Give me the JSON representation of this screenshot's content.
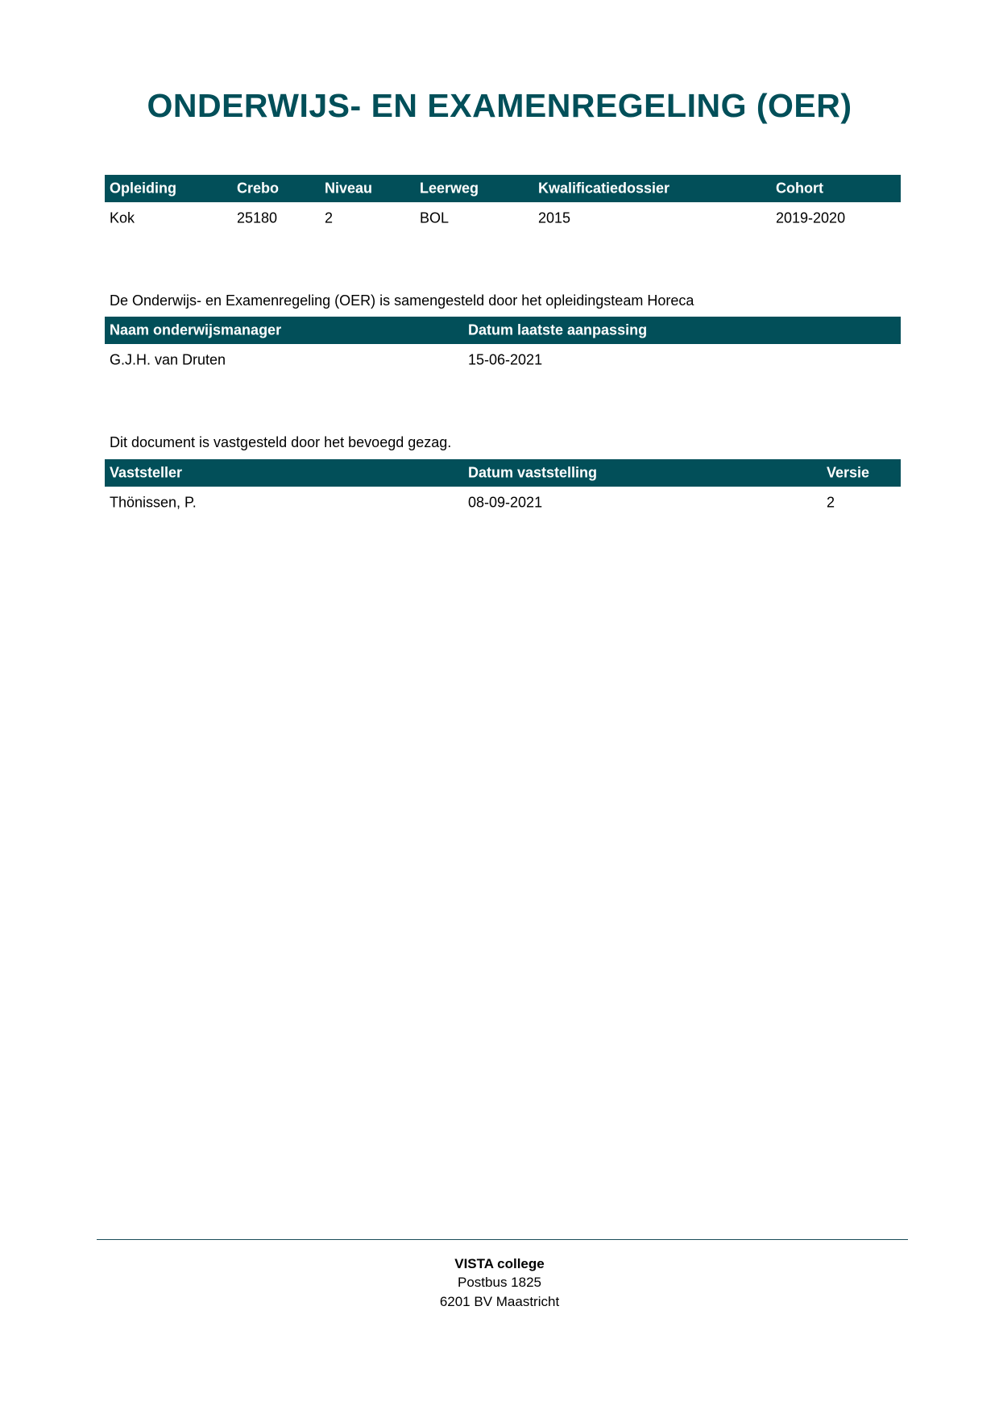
{
  "title": "ONDERWIJS- EN EXAMENREGELING (OER)",
  "table1": {
    "headers": [
      "Opleiding",
      "Crebo",
      "Niveau",
      "Leerweg",
      "Kwalificatiedossier",
      "Cohort"
    ],
    "row": [
      "Kok",
      "25180",
      "2",
      "BOL",
      "2015",
      "2019-2020"
    ]
  },
  "para1": "De Onderwijs- en Examenregeling (OER) is samengesteld door het opleidingsteam Horeca",
  "table2": {
    "headers": [
      "Naam onderwijsmanager",
      "Datum laatste aanpassing"
    ],
    "row": [
      "G.J.H. van Druten",
      "15-06-2021"
    ]
  },
  "para2": "Dit document is vastgesteld door het bevoegd gezag.",
  "table3": {
    "headers": [
      "Vaststeller",
      "Datum vaststelling",
      "Versie"
    ],
    "row": [
      "Thönissen, P.",
      "08-09-2021",
      "2"
    ]
  },
  "footer": {
    "org": "VISTA college",
    "address1": "Postbus 1825",
    "address2": "6201 BV Maastricht"
  },
  "colors": {
    "accent": "#024f59"
  }
}
